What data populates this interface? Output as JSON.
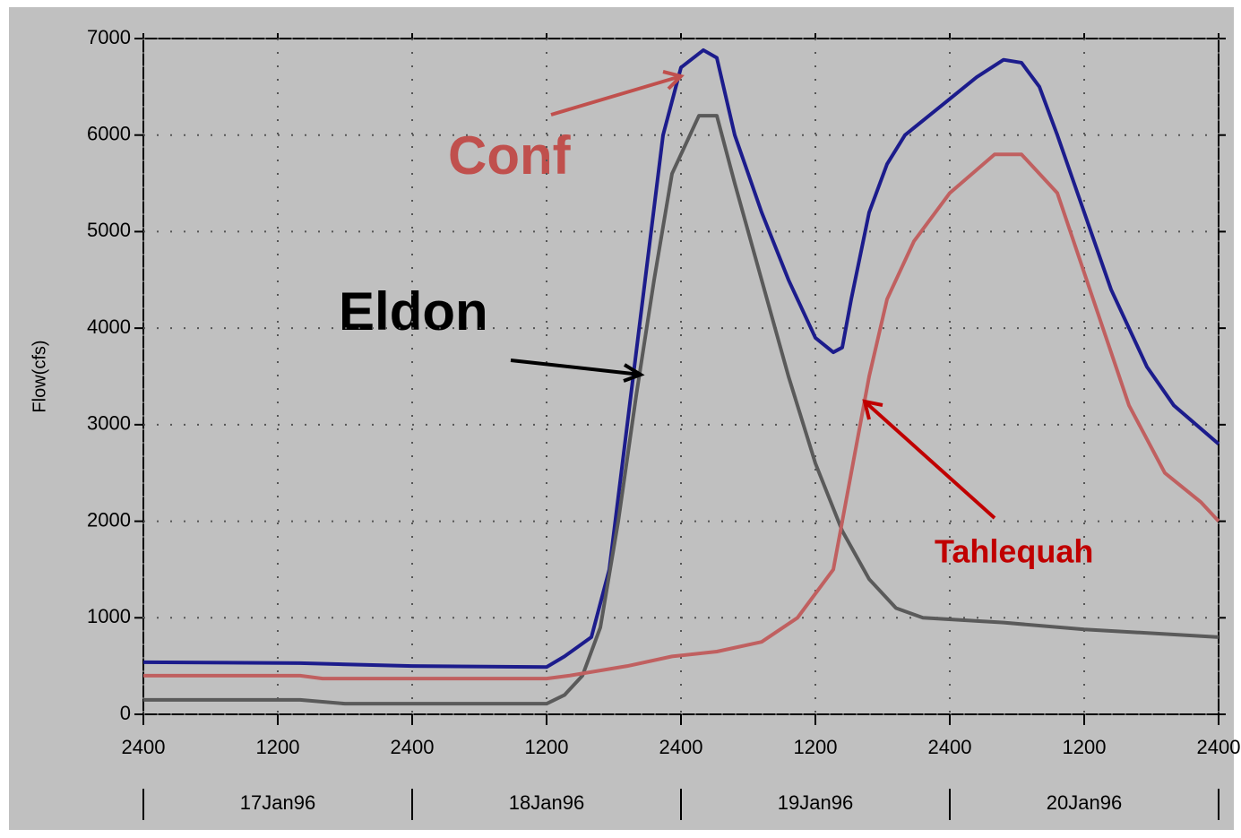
{
  "chart_data": {
    "type": "line",
    "y_label": "Flow(cfs)",
    "xlim": [
      0,
      96
    ],
    "xticks": [
      {
        "value": 0,
        "label": "2400"
      },
      {
        "value": 12,
        "label": "1200"
      },
      {
        "value": 24,
        "label": "2400"
      },
      {
        "value": 36,
        "label": "1200"
      },
      {
        "value": 48,
        "label": "2400"
      },
      {
        "value": 60,
        "label": "1200"
      },
      {
        "value": 72,
        "label": "2400"
      },
      {
        "value": 84,
        "label": "1200"
      },
      {
        "value": 96,
        "label": "2400"
      }
    ],
    "days": [
      "17Jan96",
      "18Jan96",
      "19Jan96",
      "20Jan96"
    ],
    "ylim": [
      0,
      7000
    ],
    "yticks": [
      0,
      1000,
      2000,
      3000,
      4000,
      5000,
      6000,
      7000
    ],
    "grid": true,
    "series": [
      {
        "name": "Conf",
        "color": "#1c1c8c",
        "x": [
          0,
          14,
          24,
          36,
          37.6,
          40,
          41.6,
          43.2,
          44.8,
          46.4,
          48,
          50,
          51.2,
          52.8,
          55.2,
          57.6,
          60,
          61.6,
          62.4,
          63.2,
          64.8,
          66.4,
          68,
          71.2,
          74.4,
          76.8,
          78.4,
          80,
          81.6,
          84,
          86.4,
          89.6,
          92,
          96
        ],
        "values": [
          540,
          530,
          500,
          490,
          600,
          800,
          1500,
          3000,
          4500,
          6000,
          6700,
          6880,
          6800,
          6000,
          5200,
          4500,
          3900,
          3750,
          3800,
          4300,
          5200,
          5700,
          6000,
          6300,
          6600,
          6780,
          6750,
          6500,
          6000,
          5200,
          4400,
          3600,
          3200,
          2800
        ]
      },
      {
        "name": "Eldon",
        "color": "#5a5a5a",
        "x": [
          0,
          14,
          18,
          36,
          37.6,
          39.2,
          40.8,
          42.4,
          44,
          45.6,
          47.2,
          49.6,
          51.2,
          52.8,
          55.2,
          57.6,
          60,
          62.4,
          64.8,
          67.2,
          69.6,
          76.8,
          84,
          96
        ],
        "values": [
          150,
          150,
          110,
          110,
          200,
          400,
          900,
          2000,
          3300,
          4500,
          5600,
          6200,
          6200,
          5500,
          4500,
          3500,
          2600,
          1900,
          1400,
          1100,
          1000,
          950,
          880,
          800
        ]
      },
      {
        "name": "Tahlequah",
        "color": "#c06060",
        "x": [
          0,
          14,
          16,
          36,
          38,
          43.2,
          47.2,
          51.2,
          55.2,
          58.4,
          61.6,
          63.2,
          64.8,
          66.4,
          68.8,
          72,
          76,
          78.4,
          81.6,
          84.8,
          88,
          91.2,
          94.4,
          96
        ],
        "values": [
          400,
          400,
          370,
          370,
          400,
          500,
          600,
          650,
          750,
          1000,
          1500,
          2500,
          3500,
          4300,
          4900,
          5400,
          5800,
          5800,
          5400,
          4300,
          3200,
          2500,
          2200,
          2000
        ]
      }
    ]
  }
}
